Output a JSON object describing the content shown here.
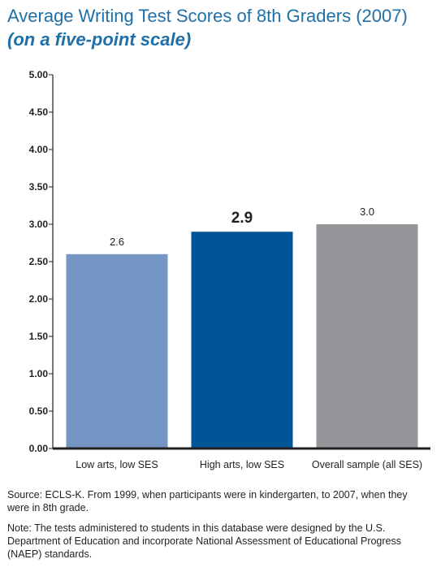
{
  "title": "Average Writing Test Scores of 8th Graders (2007)",
  "subtitle": "(on a five-point scale)",
  "chart_data": {
    "type": "bar",
    "title": "Average Writing Test Scores of 8th Graders (2007)",
    "subtitle": "(on a five-point scale)",
    "categories": [
      "Low arts, low SES",
      "High arts, low SES",
      "Overall sample (all SES)"
    ],
    "values": [
      2.6,
      2.9,
      3.0
    ],
    "value_labels": [
      "2.6",
      "2.9",
      "3.0"
    ],
    "bar_colors": [
      "#7595c4",
      "#005596",
      "#939598"
    ],
    "ylim": [
      0,
      5
    ],
    "yticks": [
      "0.00",
      "0.50",
      "1.00",
      "1.50",
      "2.00",
      "2.50",
      "3.00",
      "3.50",
      "4.00",
      "4.50",
      "5.00"
    ],
    "xlabel": "",
    "ylabel": "",
    "grid": false,
    "legend": "none"
  },
  "notes": {
    "source": "Source: ECLS-K. From 1999, when participants were in kindergarten, to 2007, when they were in 8th grade.",
    "note": "Note: The tests administered to students in this database were designed by the U.S. Department of Education and incorporate National Assessment of Educational Progress (NAEP) standards."
  }
}
